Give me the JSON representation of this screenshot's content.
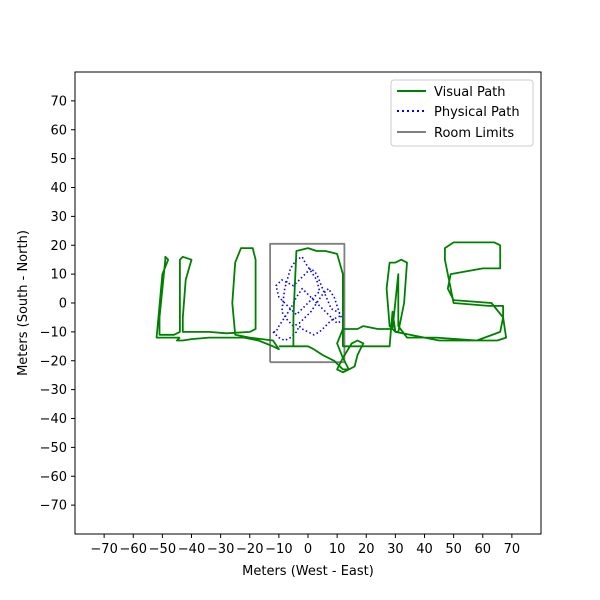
{
  "chart_data": {
    "type": "line",
    "title": "",
    "xlabel": "Meters (West - East)",
    "ylabel": "Meters (South - North)",
    "xlim": [
      -80,
      80
    ],
    "ylim": [
      -80,
      80
    ],
    "xticks": [
      -70,
      -60,
      -50,
      -40,
      -30,
      -20,
      -10,
      0,
      10,
      20,
      30,
      40,
      50,
      60,
      70
    ],
    "yticks": [
      -70,
      -60,
      -50,
      -40,
      -30,
      -20,
      -10,
      0,
      10,
      20,
      30,
      40,
      50,
      60,
      70
    ],
    "grid": false,
    "legend_position": "top-right",
    "series": [
      {
        "name": "Visual Path",
        "style": "solid",
        "color": "#008000",
        "x": [
          -44,
          -45,
          -43,
          -40,
          -34,
          -30,
          -26,
          -22,
          -17,
          -12,
          -10,
          -12,
          -20,
          -25,
          -26,
          -25,
          -23,
          -20,
          -19,
          -18,
          -18,
          -20,
          -28,
          -34,
          -38,
          -43,
          -43,
          -42,
          -40,
          -43,
          -44,
          -44,
          -46,
          -51,
          -51,
          -50,
          -49,
          -49,
          -48,
          -50,
          -52,
          -50,
          -47,
          -44
        ],
        "y": [
          -12,
          -13,
          -13,
          -12.5,
          -12,
          -12,
          -12,
          -12,
          -13,
          -15,
          -16,
          -13,
          -12,
          -11,
          0,
          14,
          19,
          19,
          19,
          15,
          -9,
          -10,
          -10.5,
          -10,
          -10,
          -10,
          -5,
          8,
          15,
          16,
          15,
          -10,
          -11,
          -11,
          -5,
          5,
          15,
          16,
          15,
          10,
          -12,
          -12,
          -12,
          -12
        ],
        "path_c": {
          "x": [
            -10,
            -5,
            -5,
            -4,
            0,
            3,
            6,
            10,
            12,
            12,
            15,
            18,
            22,
            25,
            28,
            29,
            30,
            31,
            33,
            34,
            32,
            30,
            28,
            27,
            28,
            30,
            40,
            45,
            60,
            65,
            68,
            67,
            63,
            50,
            48,
            49,
            60,
            66,
            66,
            64,
            50,
            47,
            47,
            50,
            62,
            67,
            67,
            66,
            58,
            44,
            34,
            31,
            31,
            29,
            24,
            19,
            17,
            12,
            10,
            12,
            14,
            12,
            10,
            12,
            15,
            17,
            19,
            17,
            16,
            14,
            12,
            9,
            5,
            2,
            0,
            -3,
            -5,
            -10
          ],
          "y": [
            -15,
            -15,
            -5,
            18,
            19,
            18,
            18,
            17,
            10,
            -15,
            -15,
            -15,
            -15,
            -15,
            -15,
            -3,
            -10,
            -10,
            0,
            14,
            15,
            14,
            14,
            5,
            -8,
            -10,
            -12,
            -13,
            -13,
            -13,
            -12,
            -5,
            0,
            1,
            5,
            10,
            12,
            12,
            20,
            21,
            21,
            19,
            15,
            0,
            -1,
            -1,
            -5,
            -10,
            -13,
            -12,
            -12,
            -8,
            10,
            -9,
            -9,
            -8,
            -9,
            -9,
            -14,
            -19,
            -23,
            -24,
            -23,
            -19,
            -14,
            -13,
            -14,
            -18,
            -22,
            -23,
            -23,
            -20,
            -18,
            -16,
            -15,
            -15,
            -15,
            -15
          ]
        }
      },
      {
        "name": "Physical Path",
        "style": "dotted",
        "color": "#0000ff",
        "x": [
          -12,
          -10,
          -8,
          -6,
          -4,
          -3,
          -2,
          0,
          2,
          4,
          6,
          8,
          10,
          12,
          10,
          8,
          5,
          3,
          1,
          -1,
          -3,
          -5,
          -7,
          -9,
          -11,
          -10,
          -8,
          -6,
          -4,
          -2,
          0,
          2,
          4,
          3,
          1,
          -1,
          -2,
          -4,
          -6,
          -8,
          -9,
          -7,
          -5,
          -3,
          -1,
          1,
          3,
          5,
          7,
          9,
          11,
          12,
          10,
          8,
          6,
          4,
          2,
          0,
          -2,
          -4,
          -6,
          -8,
          -10,
          -11,
          -12
        ],
        "y": [
          -10,
          -12,
          -13,
          -12,
          -10,
          -8,
          -9,
          -10,
          -11,
          -10,
          -8,
          -6,
          -5,
          -4,
          -3,
          -2,
          5,
          10,
          12,
          10,
          8,
          6,
          7,
          8,
          6,
          2,
          0,
          -2,
          -4,
          -2,
          0,
          2,
          4,
          8,
          11,
          14,
          16,
          15,
          12,
          5,
          -3,
          -6,
          -8,
          -7,
          -5,
          -3,
          0,
          3,
          5,
          2,
          -4,
          -6,
          -7,
          -5,
          -3,
          -1,
          1,
          3,
          5,
          2,
          -2,
          -5,
          -8,
          -10,
          -10
        ]
      },
      {
        "name": "Room Limits",
        "style": "solid",
        "color": "#808080",
        "x": [
          -13,
          12.5,
          12.5,
          -13,
          -13
        ],
        "y": [
          -20.5,
          -20.5,
          20.5,
          20.5,
          -20.5
        ]
      }
    ]
  }
}
